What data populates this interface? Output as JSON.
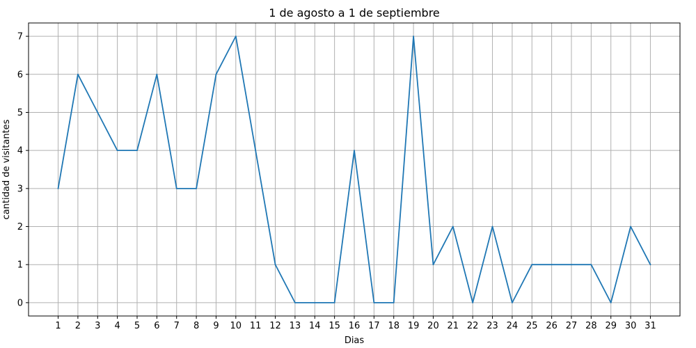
{
  "chart_data": {
    "type": "line",
    "title": "1 de agosto a 1 de septiembre",
    "xlabel": "Dias",
    "ylabel": "cantidad de visitantes",
    "x": [
      1,
      2,
      3,
      4,
      5,
      6,
      7,
      8,
      9,
      10,
      11,
      12,
      13,
      14,
      15,
      16,
      17,
      18,
      19,
      20,
      21,
      22,
      23,
      24,
      25,
      26,
      27,
      28,
      29,
      30,
      31
    ],
    "series": [
      {
        "values": [
          3,
          6,
          5,
          4,
          4,
          6,
          3,
          3,
          6,
          7,
          4,
          1,
          0,
          0,
          0,
          4,
          0,
          0,
          7,
          1,
          2,
          0,
          2,
          0,
          1,
          1,
          1,
          1,
          0,
          2,
          1
        ],
        "color": "#1f77b4"
      }
    ],
    "xlim": [
      -0.5,
      32.5
    ],
    "ylim": [
      -0.35,
      7.35
    ],
    "yticks": [
      0,
      1,
      2,
      3,
      4,
      5,
      6,
      7
    ],
    "grid": true,
    "grid_color": "#b0b0b0",
    "axis_color": "#000000"
  }
}
